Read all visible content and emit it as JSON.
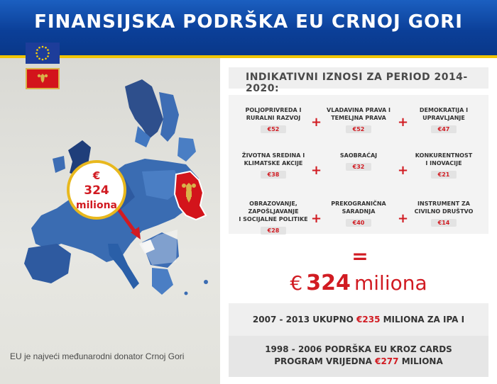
{
  "title": "FINANSIJSKA PODRŠKA EU CRNOJ GORI",
  "flags": {
    "eu": "eu-flag",
    "montenegro": "montenegro-flag"
  },
  "badge": {
    "currency": "€",
    "amount": "324",
    "unit": "miliona"
  },
  "subtitle": "INDIKATIVNI IZNOSI ZA PERIOD 2014- 2020:",
  "sectors": [
    {
      "label1": "POLJOPRIVREDA I",
      "label2": "RURALNI RAZVOJ",
      "amount": "€52"
    },
    {
      "label1": "VLADAVINA PRAVA I",
      "label2": "TEMELJNA PRAVA",
      "amount": "€52"
    },
    {
      "label1": "DEMOKRATIJA I",
      "label2": "UPRAVLJANJE",
      "amount": "€47"
    },
    {
      "label1": "ŽIVOTNA SREDINA I",
      "label2": "KLIMATSKE AKCIJE",
      "amount": "€38"
    },
    {
      "label1": "",
      "label2": "SAOBRAĆAJ",
      "amount": "€32"
    },
    {
      "label1": "KONKURENTNOST",
      "label2": "I INOVACIJE",
      "amount": "€21"
    },
    {
      "label1": "OBRAZOVANJE, ZAPOŠLJAVANJE",
      "label2": "I SOCIJALNE POLITIKE",
      "amount": "€28"
    },
    {
      "label1": "PREKOGRANIČNA",
      "label2": "SARADNJA",
      "amount": "€40"
    },
    {
      "label1": "INSTRUMENT ZA",
      "label2": "CIVILNO DRUŠTVO",
      "amount": "€14"
    }
  ],
  "operators": {
    "plus": "+",
    "equals": "="
  },
  "total": {
    "currency": "€",
    "amount": "324",
    "unit": "miliona"
  },
  "ipa": {
    "text_before": "2007 - 2013 UKUPNO ",
    "amount": "€235",
    "text_after": " MILIONA ZA IPA I"
  },
  "cards": {
    "line1": "1998 - 2006 PODRŠKA EU KROZ CARDS",
    "line2_before": "PROGRAM VRIJEDNA ",
    "amount": "€277",
    "line2_after": " MILIONA"
  },
  "footer_note": "EU je najveći međunarodni donator Crnoj Gori",
  "colors": {
    "header": "#0b3f98",
    "accent_red": "#d11b22",
    "gold": "#e8b81e",
    "map_blue": "#2a5fa8"
  }
}
